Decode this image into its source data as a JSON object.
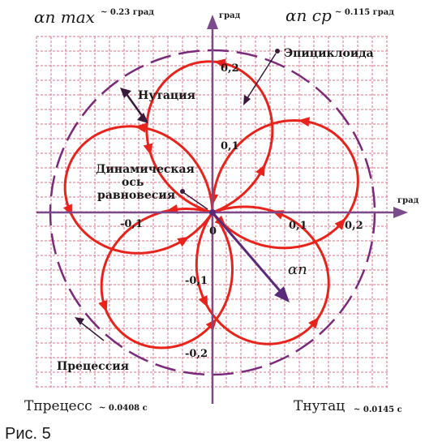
{
  "labels": {
    "alpha_max": "αп max",
    "alpha_max_value": "~ 0.23 град",
    "alpha_avg": "αп ср",
    "alpha_avg_value": "~ 0.115 град",
    "axis_unit_y": "град",
    "axis_unit_x": "град",
    "epicycloid": "Эпициклоида",
    "nutation": "Нутация",
    "dynamic_axis_line1": "Динамическая",
    "dynamic_axis_line2": "ось",
    "dynamic_axis_line3": "равновесия",
    "alpha_vector": "αп",
    "precession": "Прецессия",
    "t_precession": "Tпрецесс",
    "t_precession_value": "~ 0.0408 с",
    "t_nutation": "Tнутац",
    "t_nutation_value": "~ 0.0145 с",
    "caption": "Рис. 5",
    "origin": "0"
  },
  "ticks": {
    "y_pos": [
      "0,2",
      "0,1"
    ],
    "y_neg": [
      "-0,1",
      "-0,2"
    ],
    "x_pos": [
      "0,1",
      "0,2"
    ],
    "x_neg": [
      "-0,1"
    ]
  },
  "colors": {
    "grid": "#d9708a",
    "axis": "#7a4a8c",
    "loop": "#e8231b",
    "circle": "#7a2a7a",
    "vector": "#5a2a7a",
    "text": "#1a1a1a"
  }
}
